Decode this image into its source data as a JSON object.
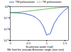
{
  "chart_data": {
    "type": "line",
    "x_label": "Scattering angle (rad)",
    "caption": "We find the pseudo-Brewster angle (see text)",
    "x": [
      0,
      0.1,
      0.2,
      0.3,
      0.4,
      0.5,
      0.6,
      0.7,
      0.8,
      0.9,
      1.0,
      1.1,
      1.2,
      1.3,
      1.4,
      1.5,
      1.6
    ],
    "series": [
      {
        "name": "TM polarization",
        "color": "#1f3fbf",
        "line_style": "solid",
        "values": [
          0.3,
          0.29,
          0.28,
          0.26,
          0.24,
          0.2,
          0.16,
          0.11,
          0.06,
          0.02,
          0.003,
          0.004,
          0.03,
          0.1,
          0.25,
          0.5,
          0.9
        ]
      },
      {
        "name": "TE polarization",
        "color": "#2ca02c",
        "line_style": "dashed",
        "values": [
          0.3,
          0.31,
          0.32,
          0.34,
          0.37,
          0.4,
          0.44,
          0.48,
          0.53,
          0.58,
          0.63,
          0.68,
          0.74,
          0.8,
          0.86,
          0.93,
          0.99
        ]
      }
    ],
    "xlim": [
      0,
      1.6
    ],
    "xticks": [
      0,
      0.5,
      1,
      1.5
    ],
    "ylim": [
      0.001,
      1
    ],
    "yticks": [
      {
        "value": 0.001,
        "label": "10⁻³"
      },
      {
        "value": 0.01,
        "label": "10⁻²"
      },
      {
        "value": 0.1,
        "label": "10⁻¹"
      },
      {
        "value": 1,
        "label": "10⁰"
      }
    ],
    "log": "y",
    "grid": false,
    "legend": "top"
  }
}
